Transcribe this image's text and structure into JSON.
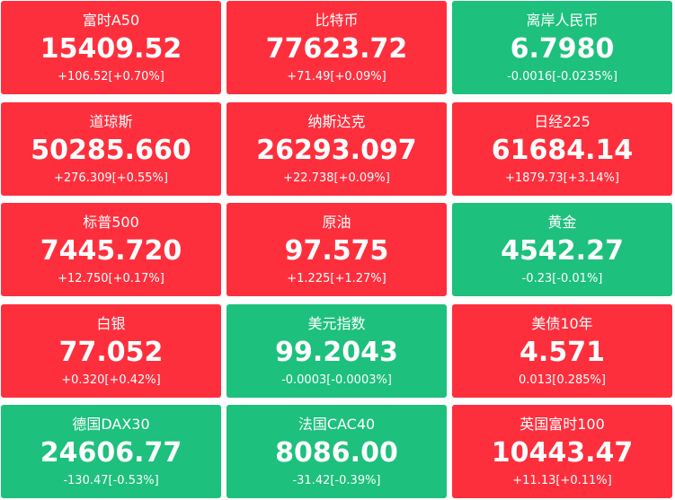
{
  "tiles": [
    {
      "name": "富时A50",
      "price": "15409.52",
      "change": "+106.52[+0.70%]",
      "color": "#fe2f3d"
    },
    {
      "name": "比特币",
      "price": "77623.72",
      "change": "+71.49[+0.09%]",
      "color": "#fe2f3d"
    },
    {
      "name": "离岸人民币",
      "price": "6.7980",
      "change": "-0.0016[-0.0235%]",
      "color": "#1dc07c"
    },
    {
      "name": "道琼斯",
      "price": "50285.660",
      "change": "+276.309[+0.55%]",
      "color": "#fe2f3d"
    },
    {
      "name": "纳斯达克",
      "price": "26293.097",
      "change": "+22.738[+0.09%]",
      "color": "#fe2f3d"
    },
    {
      "name": "日经225",
      "price": "61684.14",
      "change": "+1879.73[+3.14%]",
      "color": "#fe2f3d"
    },
    {
      "name": "标普500",
      "price": "7445.720",
      "change": "+12.750[+0.17%]",
      "color": "#fe2f3d"
    },
    {
      "name": "原油",
      "price": "97.575",
      "change": "+1.225[+1.27%]",
      "color": "#fe2f3d"
    },
    {
      "name": "黄金",
      "price": "4542.27",
      "change": "-0.23[-0.01%]",
      "color": "#1dc07c"
    },
    {
      "name": "白银",
      "price": "77.052",
      "change": "+0.320[+0.42%]",
      "color": "#fe2f3d"
    },
    {
      "name": "美元指数",
      "price": "99.2043",
      "change": "-0.0003[-0.0003%]",
      "color": "#1dc07c"
    },
    {
      "name": "美债10年",
      "price": "4.571",
      "change": "0.013[0.285%]",
      "color": "#fe2f3d"
    },
    {
      "name": "德国DAX30",
      "price": "24606.77",
      "change": "-130.47[-0.53%]",
      "color": "#1dc07c"
    },
    {
      "name": "法国CAC40",
      "price": "8086.00",
      "change": "-31.42[-0.39%]",
      "color": "#1dc07c"
    },
    {
      "name": "英国富时100",
      "price": "10443.47",
      "change": "+11.13[+0.11%]",
      "color": "#fe2f3d"
    }
  ]
}
